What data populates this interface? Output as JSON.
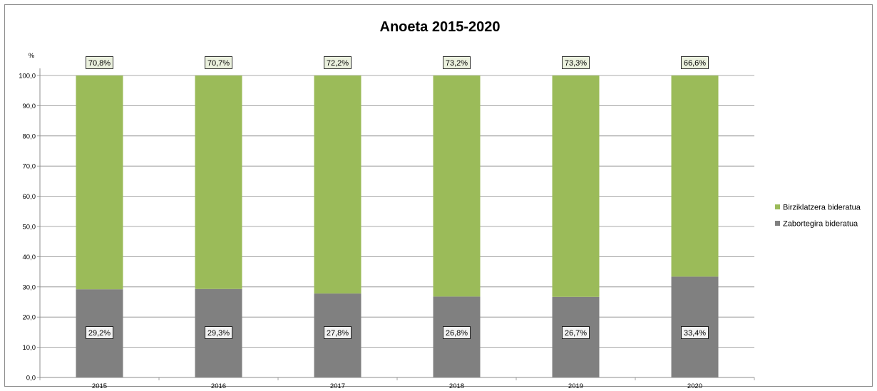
{
  "chart_data": {
    "type": "bar",
    "stacked": true,
    "title": "Anoeta 2015-2020",
    "ylabel": "%",
    "xlabel": "",
    "categories": [
      "2015",
      "2016",
      "2017",
      "2018",
      "2019",
      "2020"
    ],
    "ylim": [
      0,
      100
    ],
    "yticks": [
      "0,0",
      "10,0",
      "20,0",
      "30,0",
      "40,0",
      "50,0",
      "60,0",
      "70,0",
      "80,0",
      "90,0",
      "100,0"
    ],
    "grid": true,
    "legend_position": "right",
    "series": [
      {
        "name": "Zabortegira bideratua",
        "color": "#808080",
        "values": [
          29.2,
          29.3,
          27.8,
          26.8,
          26.7,
          33.4
        ],
        "labels": [
          "29,2%",
          "29,3%",
          "27,8%",
          "26,8%",
          "26,7%",
          "33,4%"
        ],
        "label_bg": "#f2f2f2"
      },
      {
        "name": "Birziklatzera bideratua",
        "color": "#9bbb59",
        "values": [
          70.8,
          70.7,
          72.2,
          73.2,
          73.3,
          66.6
        ],
        "labels": [
          "70,8%",
          "70,7%",
          "72,2%",
          "73,2%",
          "73,3%",
          "66,6%"
        ],
        "label_bg": "#ebf1de"
      }
    ],
    "legend_order": [
      "Birziklatzera bideratua",
      "Zabortegira bideratua"
    ]
  }
}
